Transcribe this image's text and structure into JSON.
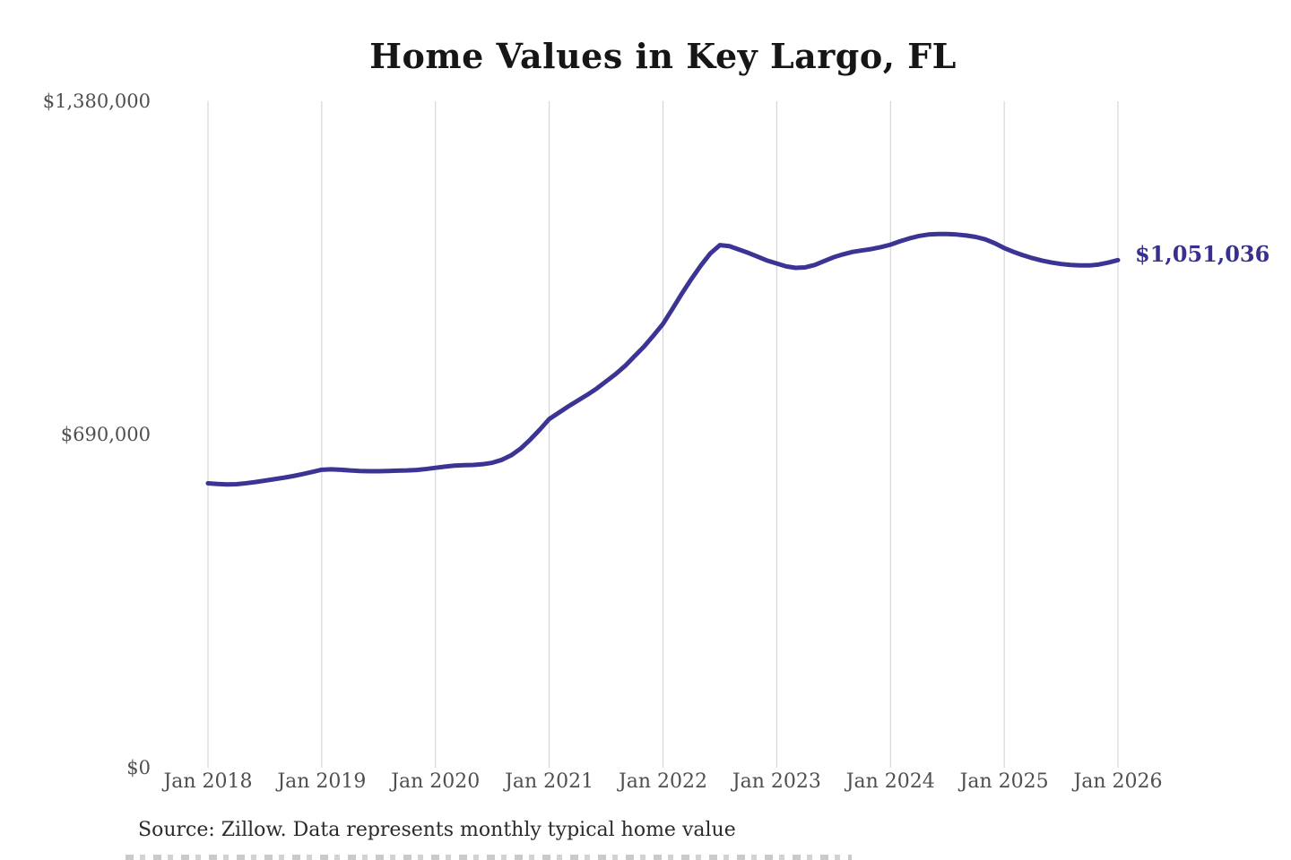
{
  "chart_data": {
    "type": "line",
    "title": "Home Values in Key Largo, FL",
    "source": "Source: Zillow. Data represents monthly typical home value",
    "series_name": "Monthly typical home value",
    "end_label": "$1,051,036",
    "end_value": 1051036,
    "ylim": [
      0,
      1380000
    ],
    "y_ticks": [
      1380000,
      690000,
      0
    ],
    "y_tick_labels": [
      "$1,380,000",
      "$690,000",
      "$0"
    ],
    "x_tick_labels": [
      "Jan 2018",
      "Jan 2019",
      "Jan 2020",
      "Jan 2021",
      "Jan 2022",
      "Jan 2023",
      "Jan 2024",
      "Jan 2025",
      "Jan 2026"
    ],
    "grid": "vertical-only",
    "legend": "none",
    "line_color": "#3b3494",
    "end_label_color": "#37308e",
    "axis_text_color": "#4f4f4f",
    "grid_color": "#cfcfcf",
    "x_frequency": "monthly",
    "months": [
      "2018-01",
      "2018-02",
      "2018-03",
      "2018-04",
      "2018-05",
      "2018-06",
      "2018-07",
      "2018-08",
      "2018-09",
      "2018-10",
      "2018-11",
      "2018-12",
      "2019-01",
      "2019-02",
      "2019-03",
      "2019-04",
      "2019-05",
      "2019-06",
      "2019-07",
      "2019-08",
      "2019-09",
      "2019-10",
      "2019-11",
      "2019-12",
      "2020-01",
      "2020-02",
      "2020-03",
      "2020-04",
      "2020-05",
      "2020-06",
      "2020-07",
      "2020-08",
      "2020-09",
      "2020-10",
      "2020-11",
      "2020-12",
      "2021-01",
      "2021-02",
      "2021-03",
      "2021-04",
      "2021-05",
      "2021-06",
      "2021-07",
      "2021-08",
      "2021-09",
      "2021-10",
      "2021-11",
      "2021-12",
      "2022-01",
      "2022-02",
      "2022-03",
      "2022-04",
      "2022-05",
      "2022-06",
      "2022-07",
      "2022-08",
      "2022-09",
      "2022-10",
      "2022-11",
      "2022-12",
      "2023-01",
      "2023-02",
      "2023-03",
      "2023-04",
      "2023-05",
      "2023-06",
      "2023-07",
      "2023-08",
      "2023-09",
      "2023-10",
      "2023-11",
      "2023-12",
      "2024-01",
      "2024-02",
      "2024-03",
      "2024-04",
      "2024-05",
      "2024-06",
      "2024-07",
      "2024-08",
      "2024-09",
      "2024-10",
      "2024-11",
      "2024-12",
      "2025-01",
      "2025-02",
      "2025-03",
      "2025-04",
      "2025-05",
      "2025-06",
      "2025-07",
      "2025-08",
      "2025-09",
      "2025-10",
      "2025-11",
      "2025-12",
      "2026-01"
    ],
    "values": [
      589000,
      587500,
      586500,
      587000,
      589000,
      591500,
      594500,
      597500,
      600500,
      604000,
      608000,
      612500,
      617000,
      618000,
      617000,
      615500,
      614500,
      614000,
      614000,
      614500,
      615000,
      615500,
      616500,
      618500,
      621000,
      623500,
      625500,
      626500,
      627000,
      628500,
      631500,
      637500,
      647000,
      661000,
      679500,
      700000,
      722000,
      735000,
      748000,
      760000,
      772000,
      785000,
      800000,
      815000,
      832000,
      852000,
      872000,
      895000,
      919000,
      950000,
      982000,
      1012000,
      1040000,
      1065000,
      1082000,
      1080000,
      1073000,
      1066000,
      1058000,
      1050000,
      1044000,
      1038000,
      1035000,
      1036000,
      1041000,
      1049000,
      1057000,
      1063000,
      1068000,
      1071000,
      1074000,
      1078000,
      1083000,
      1090000,
      1096000,
      1101000,
      1104000,
      1105000,
      1105000,
      1104000,
      1102000,
      1099000,
      1094000,
      1086000,
      1076000,
      1068000,
      1061000,
      1055000,
      1050000,
      1046000,
      1043000,
      1041000,
      1040000,
      1040000,
      1042000,
      1046000,
      1051036
    ]
  }
}
